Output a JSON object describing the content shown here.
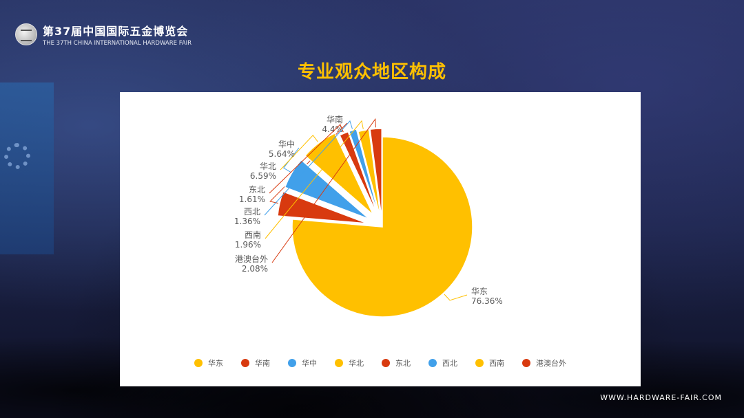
{
  "header": {
    "title_cn": "第37届中国国际五金博览会",
    "title_en": "THE 37TH CHINA INTERNATIONAL HARDWARE FAIR"
  },
  "footer": {
    "url": "WWW.HARDWARE-FAIR.COM"
  },
  "chart_data": {
    "type": "pie",
    "title": "专业观众地区构成",
    "legend_position": "bottom",
    "slices": [
      {
        "name": "华东",
        "value": 76.36,
        "label": "76.36%",
        "color": "#ffc000"
      },
      {
        "name": "华南",
        "value": 4.4,
        "label": "4.4%",
        "color": "#d83a0f"
      },
      {
        "name": "华中",
        "value": 5.64,
        "label": "5.64%",
        "color": "#41a0ea"
      },
      {
        "name": "华北",
        "value": 6.59,
        "label": "6.59%",
        "color": "#ffc000"
      },
      {
        "name": "东北",
        "value": 1.61,
        "label": "1.61%",
        "color": "#d83a0f"
      },
      {
        "name": "西北",
        "value": 1.36,
        "label": "1.36%",
        "color": "#41a0ea"
      },
      {
        "name": "西南",
        "value": 1.96,
        "label": "1.96%",
        "color": "#ffc000"
      },
      {
        "name": "港澳台外",
        "value": 2.08,
        "label": "2.08%",
        "color": "#d83a0f"
      }
    ]
  }
}
